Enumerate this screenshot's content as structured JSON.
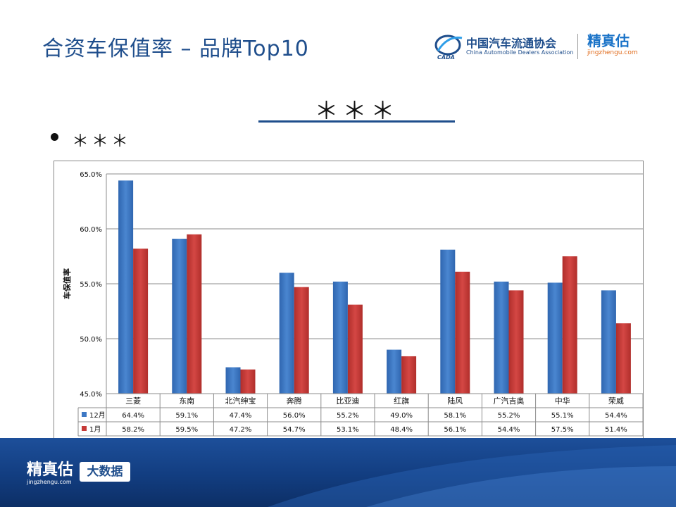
{
  "page": {
    "title": "合资车保值率 – 品牌Top10",
    "section_heading": "＊＊＊",
    "bullet_text": "＊＊＊"
  },
  "logos": {
    "cada_name": "中国汽车流通协会",
    "cada_en": "China Automobile Dealers Association",
    "cada_mark": "CADA",
    "jzg_name": "精真估",
    "jzg_url": "jingzhengu.com",
    "footer_brand": "精真估",
    "footer_url": "jingzhengu.com",
    "footer_badge": "大数据"
  },
  "colors": {
    "series_12": "#3d78c4",
    "series_1": "#c63a37",
    "title": "#1f4e8c"
  },
  "chart_data": {
    "type": "bar",
    "ylabel": "车保值率",
    "ylim": [
      45,
      65
    ],
    "yticks": [
      "45.0%",
      "50.0%",
      "55.0%",
      "60.0%",
      "65.0%"
    ],
    "grid": true,
    "legend": "table",
    "categories": [
      "三菱",
      "东南",
      "北汽绅宝",
      "奔腾",
      "比亚迪",
      "红旗",
      "陆风",
      "广汽吉奥",
      "中华",
      "荣威"
    ],
    "series": [
      {
        "name": "12月",
        "values": [
          64.4,
          59.1,
          47.4,
          56.0,
          55.2,
          49.0,
          58.1,
          55.2,
          55.1,
          54.4
        ],
        "labels": [
          "64.4%",
          "59.1%",
          "47.4%",
          "56.0%",
          "55.2%",
          "49.0%",
          "58.1%",
          "55.2%",
          "55.1%",
          "54.4%"
        ]
      },
      {
        "name": "1月",
        "values": [
          58.2,
          59.5,
          47.2,
          54.7,
          53.1,
          48.4,
          56.1,
          54.4,
          57.5,
          51.4
        ],
        "labels": [
          "58.2%",
          "59.5%",
          "47.2%",
          "54.7%",
          "53.1%",
          "48.4%",
          "56.1%",
          "54.4%",
          "57.5%",
          "51.4%"
        ]
      }
    ]
  }
}
